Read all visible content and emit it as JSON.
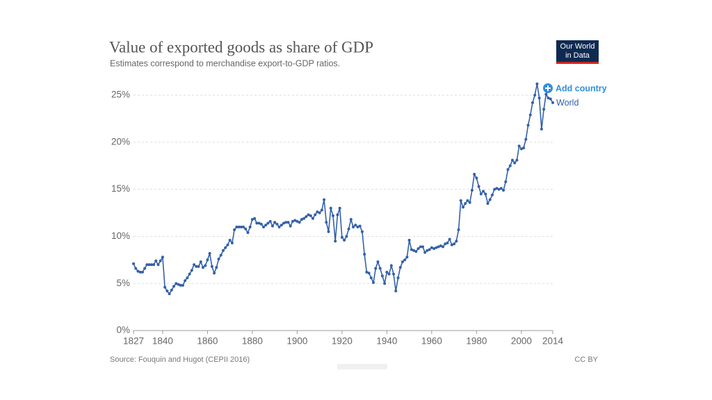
{
  "chart_data": {
    "type": "line",
    "title": "Value of exported goods as share of GDP",
    "subtitle": "Estimates correspond to merchandise export-to-GDP ratios.",
    "source": "Source: Fouquin and Hugot (CEPII 2016)",
    "license": "CC BY",
    "logo": [
      "Our World",
      "in Data"
    ],
    "add_country": "Add country",
    "x": [
      1827,
      1828,
      1829,
      1830,
      1831,
      1832,
      1833,
      1834,
      1835,
      1836,
      1837,
      1838,
      1839,
      1840,
      1841,
      1842,
      1843,
      1844,
      1845,
      1846,
      1847,
      1848,
      1849,
      1850,
      1851,
      1852,
      1853,
      1854,
      1855,
      1856,
      1857,
      1858,
      1859,
      1860,
      1861,
      1862,
      1863,
      1864,
      1865,
      1866,
      1867,
      1868,
      1869,
      1870,
      1871,
      1872,
      1873,
      1874,
      1875,
      1876,
      1877,
      1878,
      1879,
      1880,
      1881,
      1882,
      1883,
      1884,
      1885,
      1886,
      1887,
      1888,
      1889,
      1890,
      1891,
      1892,
      1893,
      1894,
      1895,
      1896,
      1897,
      1898,
      1899,
      1900,
      1901,
      1902,
      1903,
      1904,
      1905,
      1906,
      1907,
      1908,
      1909,
      1910,
      1911,
      1912,
      1913,
      1914,
      1915,
      1916,
      1917,
      1918,
      1919,
      1920,
      1921,
      1922,
      1923,
      1924,
      1925,
      1926,
      1927,
      1928,
      1929,
      1930,
      1931,
      1932,
      1933,
      1934,
      1935,
      1936,
      1937,
      1938,
      1939,
      1940,
      1941,
      1942,
      1943,
      1944,
      1945,
      1946,
      1947,
      1948,
      1949,
      1950,
      1951,
      1952,
      1953,
      1954,
      1955,
      1956,
      1957,
      1958,
      1959,
      1960,
      1961,
      1962,
      1963,
      1964,
      1965,
      1966,
      1967,
      1968,
      1969,
      1970,
      1971,
      1972,
      1973,
      1974,
      1975,
      1976,
      1977,
      1978,
      1979,
      1980,
      1981,
      1982,
      1983,
      1984,
      1985,
      1986,
      1987,
      1988,
      1989,
      1990,
      1991,
      1992,
      1993,
      1994,
      1995,
      1996,
      1997,
      1998,
      1999,
      2000,
      2001,
      2002,
      2003,
      2004,
      2005,
      2006,
      2007,
      2008,
      2009,
      2010,
      2011,
      2012,
      2013,
      2014
    ],
    "series": [
      {
        "name": "World",
        "color": "#3360a9",
        "values": [
          7.1,
          6.6,
          6.3,
          6.2,
          6.2,
          6.6,
          7.0,
          7.0,
          7.0,
          7.0,
          7.4,
          7.0,
          7.4,
          7.8,
          4.6,
          4.2,
          3.9,
          4.3,
          4.7,
          5.0,
          4.9,
          4.8,
          4.8,
          5.3,
          5.6,
          6.0,
          6.4,
          7.0,
          6.8,
          6.8,
          7.3,
          6.7,
          6.9,
          7.5,
          8.2,
          6.8,
          6.1,
          6.7,
          7.6,
          8.0,
          8.5,
          8.8,
          9.1,
          9.6,
          9.3,
          10.7,
          11.0,
          11.0,
          11.0,
          11.0,
          10.8,
          10.4,
          11.0,
          11.8,
          11.9,
          11.4,
          11.4,
          11.3,
          11.0,
          11.2,
          11.4,
          11.6,
          11.1,
          11.5,
          11.3,
          11.0,
          11.2,
          11.4,
          11.5,
          11.5,
          11.1,
          11.6,
          11.7,
          11.6,
          11.5,
          11.8,
          11.9,
          12.1,
          12.3,
          12.2,
          11.9,
          12.3,
          12.6,
          12.5,
          12.8,
          13.9,
          11.5,
          10.5,
          13.0,
          12.2,
          9.5,
          12.3,
          13.0,
          9.9,
          9.6,
          10.0,
          10.8,
          11.8,
          11.0,
          11.2,
          11.0,
          11.1,
          10.5,
          8.1,
          6.2,
          6.1,
          5.6,
          5.1,
          6.6,
          7.3,
          6.6,
          5.8,
          5.0,
          6.2,
          6.0,
          6.9,
          6.0,
          4.2,
          5.6,
          6.7,
          7.3,
          7.5,
          7.8,
          9.6,
          8.6,
          8.5,
          8.4,
          8.7,
          8.9,
          8.9,
          8.3,
          8.5,
          8.6,
          8.8,
          8.7,
          8.8,
          8.9,
          9.0,
          8.9,
          9.2,
          9.3,
          9.7,
          9.1,
          9.2,
          9.5,
          10.7,
          13.8,
          13.1,
          13.5,
          13.8,
          13.6,
          14.9,
          16.6,
          16.2,
          15.3,
          14.5,
          14.8,
          14.5,
          13.5,
          13.9,
          14.4,
          15.0,
          15.1,
          15.0,
          15.1,
          14.9,
          15.8,
          17.1,
          17.5,
          18.1,
          17.8,
          18.1,
          19.6,
          19.3,
          19.4,
          20.3,
          21.8,
          22.9,
          24.2,
          25.0,
          26.2,
          24.7,
          21.4,
          23.5,
          25.1,
          24.7,
          24.6,
          24.2
        ]
      }
    ],
    "xlim": [
      1827,
      2014
    ],
    "xticks": [
      1827,
      1840,
      1860,
      1880,
      1900,
      1920,
      1940,
      1960,
      1980,
      2000,
      2014
    ],
    "ylim": [
      0,
      26.5
    ],
    "yticks": [
      {
        "value": 0,
        "label": "0%"
      },
      {
        "value": 5,
        "label": "5%"
      },
      {
        "value": 10,
        "label": "10%"
      },
      {
        "value": 15,
        "label": "15%"
      },
      {
        "value": 20,
        "label": "20%"
      },
      {
        "value": 25,
        "label": "25%"
      }
    ],
    "grid": true
  }
}
